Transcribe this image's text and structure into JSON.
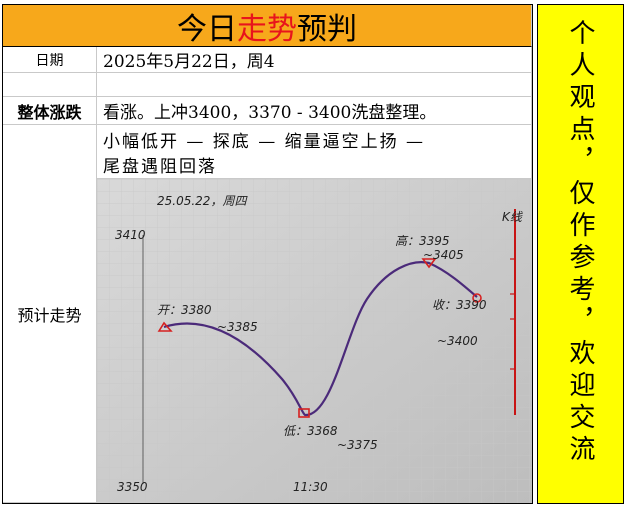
{
  "header": {
    "title_parts": [
      "今日",
      "走势",
      "预判"
    ]
  },
  "side_note": "个人观点，仅作参考，欢迎交流",
  "rows": {
    "date": {
      "label": "日期",
      "value": "2025年5月22日，周4"
    },
    "trend": {
      "label": "整体涨跌",
      "value": "看涨。上冲3400，3370 - 3400洗盘整理。"
    },
    "forecast": {
      "label": "预计走势",
      "lines": [
        "小幅低开 — 探底 — 缩量逼空上扬 —",
        "尾盘遇阻回落"
      ]
    }
  },
  "photo": {
    "date": "25.05.22，周四",
    "y_top": "3410",
    "y_bottom": "3350",
    "x_label": "11:30",
    "k_label": "K线",
    "open": [
      "开：3380",
      "~3385"
    ],
    "low": [
      "低：3368",
      "~3375"
    ],
    "high": [
      "高：3395",
      "~3405"
    ],
    "close": [
      "收：3390",
      "~3400"
    ]
  }
}
